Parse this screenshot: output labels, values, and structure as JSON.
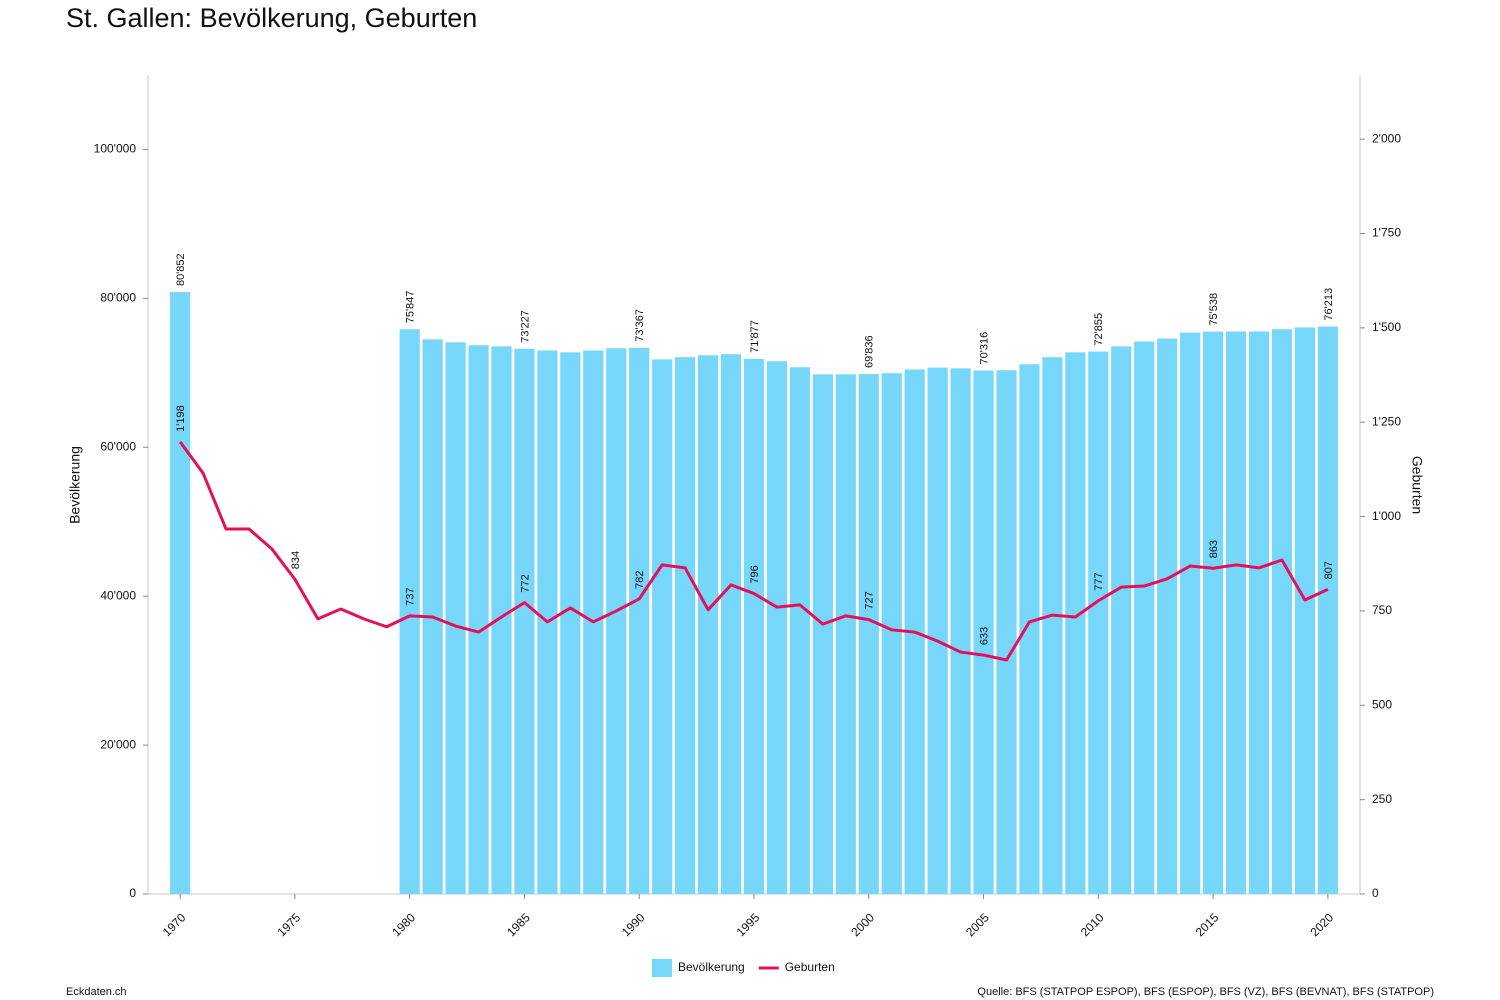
{
  "chart_data": {
    "type": "bar",
    "title": "St. Gallen: Bevölkerung, Geburten",
    "y_label": "Bevölkerung",
    "y2_label": "Geburten",
    "footer": "Eckdaten.ch",
    "source": "Quelle: BFS (STATPOP ESPOP), BFS (ESPOP), BFS (VZ), BFS (BEVNAT), BFS (STATPOP)",
    "x": [
      1970,
      1971,
      1972,
      1973,
      1974,
      1975,
      1976,
      1977,
      1978,
      1979,
      1980,
      1981,
      1982,
      1983,
      1984,
      1985,
      1986,
      1987,
      1988,
      1989,
      1990,
      1991,
      1992,
      1993,
      1994,
      1995,
      1996,
      1997,
      1998,
      1999,
      2000,
      2001,
      2002,
      2003,
      2004,
      2005,
      2006,
      2007,
      2008,
      2009,
      2010,
      2011,
      2012,
      2013,
      2014,
      2015,
      2016,
      2017,
      2018,
      2019,
      2020
    ],
    "xlim": [
      1968.6,
      2021.4
    ],
    "xticks": [
      1970,
      1975,
      1980,
      1985,
      1990,
      1995,
      2000,
      2005,
      2010,
      2015,
      2020
    ],
    "ylim": [
      0,
      110000
    ],
    "yticks": [
      0,
      {
        "value": 20000,
        "label": "20'000"
      },
      {
        "value": 40000,
        "label": "40'000"
      },
      {
        "value": 60000,
        "label": "60'000"
      },
      {
        "value": 80000,
        "label": "80'000"
      },
      {
        "value": 100000,
        "label": "100'000"
      }
    ],
    "y2lim": [
      0,
      2170
    ],
    "y2ticks": [
      0,
      250,
      500,
      750,
      {
        "value": 1000,
        "label": "1'000"
      },
      {
        "value": 1250,
        "label": "1'250"
      },
      {
        "value": 1500,
        "label": "1'500"
      },
      {
        "value": 1750,
        "label": "1'750"
      },
      {
        "value": 2000,
        "label": "2'000"
      }
    ],
    "legend": "bottom",
    "series": [
      {
        "name": "Bevölkerung",
        "type": "bar",
        "color": "#76d7fb",
        "values": [
          80852,
          null,
          null,
          null,
          null,
          null,
          null,
          null,
          null,
          null,
          75847,
          74500,
          74100,
          73700,
          73550,
          73227,
          73000,
          72750,
          73000,
          73300,
          73367,
          71800,
          72100,
          72350,
          72500,
          71877,
          71550,
          70750,
          69800,
          69800,
          69836,
          69950,
          70450,
          70700,
          70600,
          70316,
          70350,
          71150,
          72100,
          72750,
          72855,
          73550,
          74200,
          74600,
          75400,
          75538,
          75550,
          75550,
          75850,
          76100,
          76213
        ],
        "value_labels": [
          "80'852",
          null,
          null,
          null,
          null,
          null,
          null,
          null,
          null,
          null,
          "75'847",
          null,
          null,
          null,
          null,
          "73'227",
          null,
          null,
          null,
          null,
          "73'367",
          null,
          null,
          null,
          null,
          "71'877",
          null,
          null,
          null,
          null,
          "69'836",
          null,
          null,
          null,
          null,
          "70'316",
          null,
          null,
          null,
          null,
          "72'855",
          null,
          null,
          null,
          null,
          "75'538",
          null,
          null,
          null,
          null,
          "76'213"
        ]
      },
      {
        "name": "Geburten",
        "type": "line",
        "axis": "y2",
        "color": "#e5105a",
        "values": [
          1198,
          1115,
          967,
          967,
          914,
          834,
          729,
          755,
          729,
          708,
          737,
          734,
          710,
          694,
          734,
          772,
          721,
          758,
          721,
          750,
          782,
          872,
          864,
          753,
          819,
          796,
          760,
          766,
          715,
          737,
          727,
          700,
          694,
          670,
          641,
          633,
          620,
          721,
          739,
          734,
          777,
          813,
          816,
          835,
          869,
          863,
          872,
          864,
          885,
          779,
          807
        ],
        "value_labels": [
          "1'198",
          null,
          null,
          null,
          null,
          "834",
          null,
          null,
          null,
          null,
          "737",
          null,
          null,
          null,
          null,
          "772",
          null,
          null,
          null,
          null,
          "782",
          null,
          null,
          null,
          null,
          "796",
          null,
          null,
          null,
          null,
          "727",
          null,
          null,
          null,
          null,
          "633",
          null,
          null,
          null,
          null,
          "777",
          null,
          null,
          null,
          null,
          "863",
          null,
          null,
          null,
          null,
          "807"
        ]
      }
    ]
  }
}
